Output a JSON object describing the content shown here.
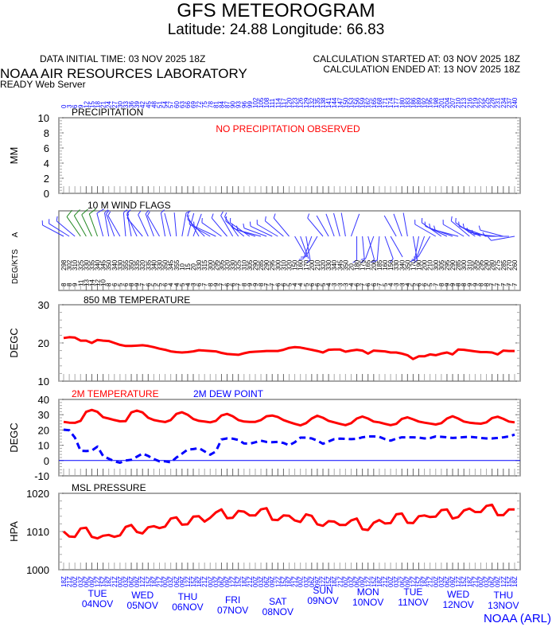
{
  "header": {
    "title": "GFS METEOROGRAM",
    "location": "Latitude: 24.88 Longitude:  66.83",
    "data_initial_time": "DATA INITIAL TIME: 03 NOV 2025 18Z",
    "calc_started": "CALCULATION STARTED AT: 03 NOV 2025 18Z",
    "calc_ended": "CALCULATION ENDED AT: 13 NOV 2025 18Z",
    "org": "NOAA AIR RESOURCES LABORATORY",
    "server": "READY Web Server",
    "footer": "NOAA (ARL)"
  },
  "colors": {
    "temp": "#ff0000",
    "dew": "#0000ff",
    "axis_text": "#0000ff",
    "wind": "#3333ff",
    "wind_strong": "#228822",
    "frame": "#888888"
  },
  "chart_data": [
    {
      "type": "bar",
      "title": "PRECIPITATION",
      "ylabel": "MM",
      "ylim": [
        0,
        10
      ],
      "yticks": [
        "0",
        "2",
        "4",
        "6",
        "8",
        "10"
      ],
      "note": "NO PRECIPITATION OBSERVED",
      "values": []
    },
    {
      "type": "scatter",
      "title": "10 M  WIND FLAGS",
      "ylabel": "DEG/KTS",
      "ylabel_suffix": "A",
      "directions_deg": [
        298,
        302,
        310,
        325,
        330,
        335,
        340,
        345,
        350,
        340,
        330,
        355,
        350,
        335,
        320,
        335,
        340,
        330,
        350,
        345,
        355,
        10,
        15,
        20,
        330,
        315,
        300,
        295,
        305,
        320,
        330,
        325,
        310,
        305,
        290,
        285,
        290,
        295,
        300,
        310,
        320,
        150,
        160,
        170,
        200,
        210,
        320,
        330,
        340,
        345,
        350,
        20,
        180,
        175,
        165,
        200,
        185,
        160,
        150,
        330,
        340,
        350,
        170,
        190,
        200,
        210,
        300,
        305,
        295,
        290,
        285,
        300,
        310,
        305,
        295,
        290,
        280,
        275,
        285,
        270,
        260
      ],
      "speeds_kts": [
        8,
        8,
        9,
        11,
        13,
        14,
        12,
        10,
        8,
        6,
        5,
        6,
        8,
        9,
        7,
        6,
        5,
        5,
        6,
        4,
        4,
        5,
        4,
        3,
        6,
        7,
        8,
        9,
        7,
        6,
        6,
        7,
        8,
        9,
        9,
        8,
        7,
        7,
        6,
        6,
        5,
        4,
        4,
        5,
        6,
        6,
        5,
        4,
        3,
        3,
        3,
        4,
        6,
        7,
        6,
        6,
        7,
        5,
        4,
        3,
        3,
        4,
        5,
        6,
        6,
        5,
        7,
        8,
        9,
        9,
        8,
        8,
        9,
        9,
        8,
        8,
        7,
        7,
        7,
        7,
        7
      ]
    },
    {
      "type": "line",
      "title": "850 MB  TEMPERATURE",
      "ylabel": "DEGC",
      "ylim": [
        10,
        30
      ],
      "yticks": [
        "10",
        "20",
        "30"
      ],
      "series": [
        {
          "name": "850 MB TEMPERATURE",
          "values": [
            21.3,
            21.5,
            21.4,
            20.6,
            20.6,
            20,
            20.8,
            20.6,
            20.5,
            20,
            19.5,
            19.2,
            19.2,
            19.3,
            19.4,
            19.2,
            18.9,
            18.5,
            18.2,
            17.8,
            17.6,
            17.5,
            17.6,
            17.8,
            18.1,
            18,
            17.9,
            17.8,
            17.4,
            17.1,
            17,
            16.9,
            17.3,
            17.6,
            17.7,
            17.8,
            17.9,
            17.9,
            17.9,
            18.2,
            18.7,
            18.9,
            18.8,
            18.5,
            18.2,
            17.9,
            17.5,
            18.2,
            18.3,
            18.3,
            17.7,
            18,
            18.2,
            18,
            17.2,
            18,
            17.9,
            17.8,
            17.5,
            17.5,
            17.2,
            16.8,
            15.8,
            16.5,
            16.5,
            17,
            16.8,
            17.2,
            17.5,
            17,
            18.3,
            18.2,
            18,
            17.8,
            17.6,
            17.6,
            17.5,
            17,
            18,
            17.9,
            17.9
          ]
        }
      ]
    },
    {
      "type": "line",
      "title": "2M TEMPERATURE",
      "title2": "2M   DEW POINT",
      "ylabel": "DEGC",
      "ylim": [
        -10,
        40
      ],
      "yticks": [
        "-10",
        "0",
        "10",
        "20",
        "30",
        "40"
      ],
      "series": [
        {
          "name": "2M TEMPERATURE",
          "values": [
            25.3,
            24.8,
            24.7,
            26,
            31.9,
            33.1,
            31.9,
            28.4,
            27.5,
            26.5,
            25.7,
            25.8,
            31.5,
            32.7,
            31.5,
            28,
            26.5,
            25.8,
            25.2,
            26.5,
            30.5,
            31.6,
            30,
            27.2,
            26,
            25.5,
            25,
            26,
            29.5,
            30.5,
            29,
            26.5,
            25.5,
            25.3,
            25.3,
            26.5,
            29,
            29.5,
            28.5,
            26.5,
            25.2,
            24,
            23,
            24.5,
            27.5,
            29.3,
            28,
            26,
            25,
            24,
            23.2,
            24.5,
            27.5,
            28.8,
            27.5,
            25.5,
            25,
            24,
            23.2,
            24,
            27.3,
            28.3,
            27,
            25.5,
            24.8,
            24.2,
            23.6,
            24.5,
            27.5,
            29,
            27.5,
            25.5,
            24.8,
            24.4,
            24.1,
            25,
            27.8,
            28.7,
            27.3,
            25.5,
            25
          ]
        },
        {
          "name": "2M DEW POINT",
          "values": [
            20.2,
            19.8,
            15,
            6.4,
            6.2,
            6.5,
            9.1,
            3,
            1.2,
            -0.5,
            -1.4,
            0,
            0.5,
            2.5,
            4.6,
            3,
            1,
            -0.5,
            -0.5,
            -1.2,
            2,
            4.5,
            7.2,
            7.5,
            8.1,
            6,
            3.8,
            6,
            13.8,
            14.5,
            14.3,
            13.5,
            11.2,
            11,
            12,
            13,
            12.2,
            12,
            12.2,
            11.5,
            10,
            12,
            15,
            15,
            14.5,
            13,
            11,
            12.5,
            14,
            14.3,
            14.2,
            14,
            14.2,
            15.2,
            15.8,
            15.8,
            15.5,
            14,
            13,
            14.3,
            15.2,
            15.2,
            15.2,
            15,
            14.5,
            14.7,
            15.8,
            15.5,
            15.2,
            14.8,
            15,
            15.3,
            15.5,
            15.2,
            14.8,
            14.5,
            14.5,
            14.8,
            15.2,
            15.8,
            17
          ]
        }
      ]
    },
    {
      "type": "line",
      "title": "MSL PRESSURE",
      "ylabel": "HPA",
      "ylim": [
        1000,
        1020
      ],
      "yticks": [
        "1000",
        "1010",
        "1020"
      ],
      "series": [
        {
          "name": "MSL PRESSURE",
          "values": [
            1010,
            1008.7,
            1008.6,
            1010.8,
            1011,
            1008.6,
            1008.2,
            1008.9,
            1009.1,
            1008.6,
            1009,
            1011.2,
            1011.7,
            1009.9,
            1009.5,
            1011.1,
            1011.4,
            1010.9,
            1011.3,
            1013.4,
            1013.7,
            1011.8,
            1011.9,
            1013.9,
            1014,
            1012.6,
            1013.6,
            1015,
            1015.8,
            1013.5,
            1013.6,
            1015.4,
            1015.2,
            1014.2,
            1014.2,
            1015.8,
            1016.1,
            1013.1,
            1013,
            1014.2,
            1014.1,
            1012.9,
            1012.5,
            1014.5,
            1014.1,
            1011.9,
            1011.5,
            1012.7,
            1012.6,
            1011.7,
            1011.7,
            1012.9,
            1013.4,
            1010.6,
            1010.4,
            1012.3,
            1013,
            1012.1,
            1012.2,
            1014.5,
            1014.7,
            1012.3,
            1012.2,
            1014,
            1014.2,
            1013.8,
            1013.9,
            1015.6,
            1015.8,
            1013.4,
            1013.8,
            1015.5,
            1016,
            1015.1,
            1015.1,
            1016.7,
            1017,
            1014.3,
            1014.3,
            1015.8,
            1015.8
          ]
        }
      ]
    }
  ],
  "time_axis": {
    "forecast_hour_step": 3,
    "forecast_hours_max": 240,
    "start_hour_utc": 18,
    "hour_suffix": "Z",
    "days": [
      {
        "dow": "TUE",
        "date": "04NOV"
      },
      {
        "dow": "WED",
        "date": "05NOV"
      },
      {
        "dow": "THU",
        "date": "06NOV"
      },
      {
        "dow": "FRI",
        "date": "07NOV"
      },
      {
        "dow": "SAT",
        "date": "08NOV"
      },
      {
        "dow": "SUN",
        "date": "09NOV"
      },
      {
        "dow": "MON",
        "date": "10NOV"
      },
      {
        "dow": "TUE",
        "date": "11NOV"
      },
      {
        "dow": "WED",
        "date": "12NOV"
      },
      {
        "dow": "THU",
        "date": "13NOV"
      }
    ]
  }
}
